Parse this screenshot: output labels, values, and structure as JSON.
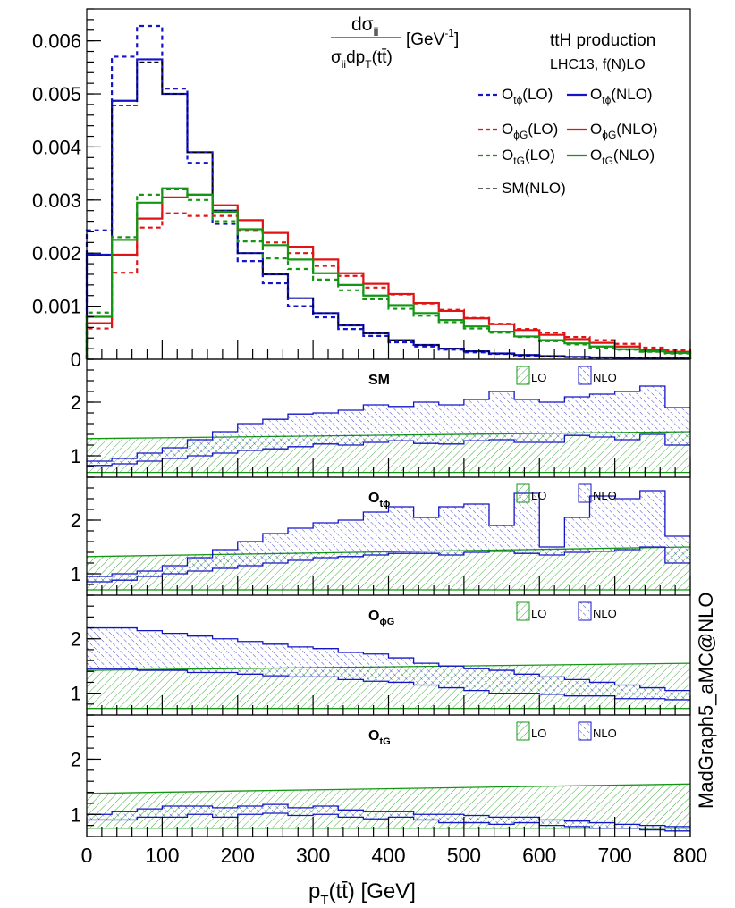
{
  "chart_data": [
    {
      "type": "line",
      "style": "step-histogram",
      "title_formula": {
        "num": "dσ",
        "num_sub": "ii",
        "den": "σ",
        "den_sub": "ii",
        "den_rest": "dp",
        "den_rest_sub": "T",
        "den_tail": "(tt̄)",
        "units": "[GeV",
        "units_sup": "-1",
        "units_close": "]"
      },
      "process": "ttH production",
      "collider": "LHC13, f(N)LO",
      "xlabel": "p",
      "xlabel_sub": "T",
      "xlabel_rest": "(tt̄) [GeV]",
      "ylim": [
        0,
        0.0066
      ],
      "yticks": [
        0,
        0.001,
        0.002,
        0.003,
        0.004,
        0.005,
        0.006
      ],
      "ytick_labels": [
        "0",
        "0.001",
        "0.002",
        "0.003",
        "0.004",
        "0.005",
        "0.006"
      ],
      "xlim": [
        0,
        800
      ],
      "xticks": [
        0,
        100,
        200,
        300,
        400,
        500,
        600,
        700,
        800
      ],
      "xtick_labels": [
        "0",
        "100",
        "200",
        "300",
        "400",
        "500",
        "600",
        "700",
        "800"
      ],
      "bin_edges": [
        0,
        33.33,
        66.67,
        100,
        133.33,
        166.67,
        200,
        233.33,
        266.67,
        300,
        333.33,
        366.67,
        400,
        433.33,
        466.67,
        500,
        533.33,
        566.67,
        600,
        633.33,
        666.67,
        700,
        733.33,
        766.67,
        800
      ],
      "colors": {
        "tphi": "#1414c8",
        "phiG": "#e01414",
        "tG": "#149614",
        "sm": "#000000"
      },
      "legend": [
        {
          "key": "tphi_lo",
          "base": "O",
          "sub": "tϕ",
          "suffix": "(LO)"
        },
        {
          "key": "tphi_nlo",
          "base": "O",
          "sub": "tϕ",
          "suffix": "(NLO)"
        },
        {
          "key": "phiG_lo",
          "base": "O",
          "sub": "ϕG",
          "suffix": "(LO)"
        },
        {
          "key": "phiG_nlo",
          "base": "O",
          "sub": "ϕG",
          "suffix": "(NLO)"
        },
        {
          "key": "tG_lo",
          "base": "O",
          "sub": "tG",
          "suffix": "(LO)"
        },
        {
          "key": "tG_nlo",
          "base": "O",
          "sub": "tG",
          "suffix": "(NLO)"
        },
        {
          "key": "sm_nlo",
          "base": "SM",
          "sub": "",
          "suffix": "(NLO)"
        }
      ],
      "series": [
        {
          "name": "tphi_lo",
          "color_key": "tphi",
          "dashed": true,
          "values": [
            0.00243,
            0.0057,
            0.00628,
            0.0051,
            0.0037,
            0.00255,
            0.00185,
            0.00143,
            0.001,
            0.00079,
            0.00057,
            0.00044,
            0.00032,
            0.00024,
            0.00018,
            0.00013,
            0.0001,
            7e-05,
            5e-05,
            4e-05,
            3e-05,
            2.5e-05,
            2e-05,
            1.5e-05
          ]
        },
        {
          "name": "tphi_nlo",
          "color_key": "tphi",
          "dashed": false,
          "values": [
            0.00197,
            0.00487,
            0.00565,
            0.005,
            0.0039,
            0.0028,
            0.002,
            0.0016,
            0.00115,
            0.00087,
            0.00064,
            0.00049,
            0.00036,
            0.00027,
            0.0002,
            0.00015,
            0.00011,
            8e-05,
            6e-05,
            4.5e-05,
            3.5e-05,
            2.8e-05,
            2.2e-05,
            1.7e-05
          ]
        },
        {
          "name": "sm_nlo",
          "color_key": "sm",
          "dashed": true,
          "values": [
            0.00195,
            0.00478,
            0.0056,
            0.005,
            0.0039,
            0.0028,
            0.002,
            0.0016,
            0.00115,
            0.00087,
            0.00064,
            0.00049,
            0.00036,
            0.00027,
            0.0002,
            0.00015,
            0.00011,
            8e-05,
            6e-05,
            4.5e-05,
            3.5e-05,
            2.8e-05,
            2.2e-05,
            1.7e-05
          ]
        },
        {
          "name": "phiG_lo",
          "color_key": "phiG",
          "dashed": true,
          "values": [
            0.00058,
            0.00163,
            0.00248,
            0.00275,
            0.0027,
            0.0027,
            0.00242,
            0.0022,
            0.002,
            0.00176,
            0.00157,
            0.00135,
            0.00122,
            0.00105,
            0.00093,
            0.00078,
            0.00067,
            0.00057,
            0.0005,
            0.00042,
            0.00036,
            0.00029,
            0.00022,
            0.00017
          ]
        },
        {
          "name": "phiG_nlo",
          "color_key": "phiG",
          "dashed": false,
          "values": [
            0.00068,
            0.00197,
            0.00265,
            0.00305,
            0.0031,
            0.0029,
            0.00262,
            0.00238,
            0.00212,
            0.00188,
            0.00162,
            0.00142,
            0.00123,
            0.00106,
            0.00091,
            0.00077,
            0.00066,
            0.00055,
            0.00046,
            0.00038,
            0.00031,
            0.00024,
            0.00018,
            0.00014
          ]
        },
        {
          "name": "tG_lo",
          "color_key": "tG",
          "dashed": true,
          "values": [
            0.00088,
            0.0023,
            0.0031,
            0.0032,
            0.003,
            0.0026,
            0.00222,
            0.0019,
            0.0017,
            0.0015,
            0.0013,
            0.00113,
            0.00095,
            0.00082,
            0.0007,
            0.00058,
            0.0005,
            0.00042,
            0.00034,
            0.00028,
            0.00022,
            0.00018,
            0.00014,
            0.00011
          ]
        },
        {
          "name": "tG_nlo",
          "color_key": "tG",
          "dashed": false,
          "values": [
            0.0008,
            0.00225,
            0.00295,
            0.00322,
            0.0031,
            0.00278,
            0.00245,
            0.00215,
            0.00188,
            0.00162,
            0.0014,
            0.0012,
            0.00102,
            0.00087,
            0.00074,
            0.00062,
            0.00052,
            0.00043,
            0.00036,
            0.0003,
            0.00024,
            0.00019,
            0.00015,
            0.00012
          ]
        }
      ]
    },
    {
      "type": "area",
      "style": "ratio-bands",
      "panel_label": "SM",
      "panel_label_sub": "",
      "ylim": [
        0.6,
        2.8
      ],
      "yticks": [
        1,
        2
      ],
      "ytick_labels": [
        "1",
        "2"
      ],
      "lo_band": {
        "low_start": 0.69,
        "low_end": 0.69,
        "high_start": 1.32,
        "high_end": 1.45
      },
      "nlo_band": {
        "low": [
          0.82,
          0.85,
          0.9,
          0.95,
          1.0,
          1.05,
          1.1,
          1.13,
          1.17,
          1.22,
          1.2,
          1.25,
          1.28,
          1.23,
          1.22,
          1.28,
          1.3,
          1.25,
          1.25,
          1.38,
          1.35,
          1.3,
          1.4,
          1.2
        ],
        "high": [
          0.9,
          0.95,
          1.05,
          1.15,
          1.3,
          1.45,
          1.6,
          1.68,
          1.78,
          1.8,
          1.85,
          1.95,
          1.92,
          2.0,
          1.95,
          2.05,
          2.2,
          2.05,
          2.0,
          2.1,
          2.15,
          2.2,
          2.3,
          1.9
        ]
      },
      "legend": {
        "lo": "LO",
        "nlo": "NLO"
      }
    },
    {
      "type": "area",
      "style": "ratio-bands",
      "panel_label": "O",
      "panel_label_sub": "tϕ",
      "ylim": [
        0.6,
        2.8
      ],
      "yticks": [
        1,
        2
      ],
      "ytick_labels": [
        "1",
        "2"
      ],
      "lo_band": {
        "low_start": 0.7,
        "low_end": 0.7,
        "high_start": 1.32,
        "high_end": 1.5
      },
      "nlo_band": {
        "low": [
          0.85,
          0.88,
          0.95,
          1.0,
          1.05,
          1.1,
          1.15,
          1.2,
          1.25,
          1.3,
          1.32,
          1.35,
          1.38,
          1.38,
          1.35,
          1.4,
          1.42,
          1.38,
          1.35,
          1.4,
          1.42,
          1.45,
          1.5,
          1.2
        ],
        "high": [
          0.95,
          1.0,
          1.05,
          1.15,
          1.3,
          1.45,
          1.6,
          1.75,
          1.85,
          1.95,
          2.0,
          2.15,
          2.25,
          2.05,
          2.25,
          2.3,
          1.9,
          2.5,
          1.5,
          2.05,
          2.45,
          2.4,
          2.55,
          1.7
        ]
      },
      "legend": {
        "lo": "LO",
        "nlo": "NLO"
      }
    },
    {
      "type": "area",
      "style": "ratio-bands",
      "panel_label": "O",
      "panel_label_sub": "ϕG",
      "ylim": [
        0.6,
        2.8
      ],
      "yticks": [
        1,
        2
      ],
      "ytick_labels": [
        "1",
        "2"
      ],
      "lo_band": {
        "low_start": 0.72,
        "low_end": 0.72,
        "high_start": 1.42,
        "high_end": 1.55
      },
      "nlo_band": {
        "low": [
          1.45,
          1.45,
          1.42,
          1.42,
          1.38,
          1.38,
          1.35,
          1.32,
          1.3,
          1.3,
          1.25,
          1.22,
          1.2,
          1.15,
          1.1,
          1.05,
          1.0,
          1.0,
          0.98,
          0.95,
          0.95,
          0.9,
          0.9,
          0.88
        ],
        "high": [
          2.2,
          2.2,
          2.15,
          2.1,
          2.05,
          2.0,
          1.95,
          1.9,
          1.85,
          1.82,
          1.75,
          1.72,
          1.65,
          1.55,
          1.5,
          1.45,
          1.42,
          1.35,
          1.3,
          1.25,
          1.2,
          1.15,
          1.1,
          1.05
        ]
      },
      "legend": {
        "lo": "LO",
        "nlo": "NLO"
      }
    },
    {
      "type": "area",
      "style": "ratio-bands",
      "panel_label": "O",
      "panel_label_sub": "tG",
      "ylim": [
        0.6,
        2.8
      ],
      "yticks": [
        1,
        2
      ],
      "ytick_labels": [
        "1",
        "2"
      ],
      "lo_band": {
        "low_start": 0.75,
        "low_end": 0.75,
        "high_start": 1.38,
        "high_end": 1.55
      },
      "nlo_band": {
        "low": [
          0.9,
          0.9,
          0.95,
          0.95,
          1.0,
          0.95,
          1.0,
          1.02,
          0.98,
          1.0,
          0.95,
          0.92,
          0.95,
          0.9,
          0.85,
          0.85,
          0.82,
          0.85,
          0.8,
          0.78,
          0.75,
          0.75,
          0.72,
          0.7
        ],
        "high": [
          1.0,
          1.05,
          1.1,
          1.15,
          1.15,
          1.12,
          1.15,
          1.18,
          1.12,
          1.15,
          1.08,
          1.05,
          1.05,
          1.0,
          1.0,
          0.98,
          0.95,
          0.95,
          0.9,
          0.88,
          0.85,
          0.82,
          0.8,
          0.78
        ]
      },
      "legend": {
        "lo": "LO",
        "nlo": "NLO"
      }
    }
  ],
  "side_label": "MadGraph5_aMC@NLO"
}
